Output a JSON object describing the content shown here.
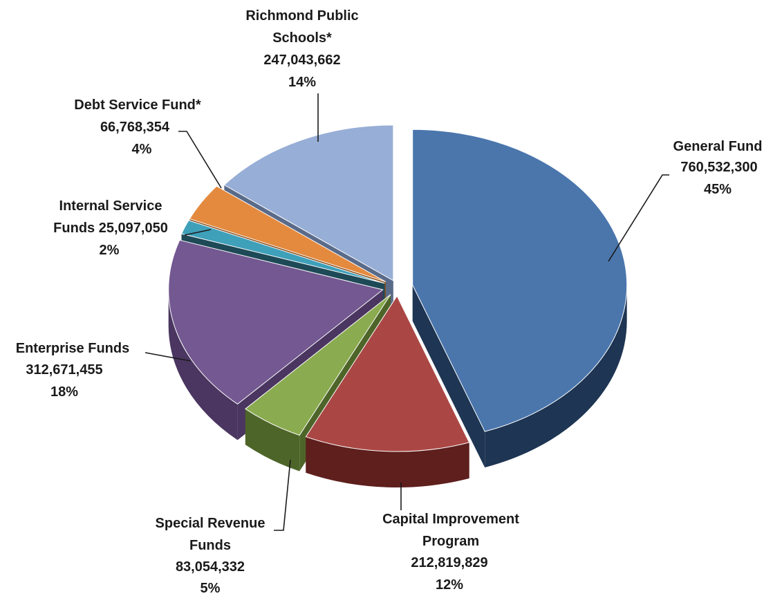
{
  "chart_data": {
    "type": "pie",
    "title": "",
    "three_d": true,
    "exploded": true,
    "slices": [
      {
        "name": "General Fund",
        "value": 760532300,
        "percent": "45%",
        "value_label": "760,532,300",
        "label_lines": [
          "General Fund"
        ],
        "color": "#4A76AC",
        "side_color": "#1E3553"
      },
      {
        "name": "Capital Improvement Program",
        "value": 212819829,
        "percent": "12%",
        "value_label": "212,819,829",
        "label_lines": [
          "Capital Improvement",
          "Program"
        ],
        "color": "#AA4744",
        "side_color": "#5E1F1D"
      },
      {
        "name": "Special Revenue Funds",
        "value": 83054332,
        "percent": "5%",
        "value_label": "83,054,332",
        "label_lines": [
          "Special Revenue",
          "Funds"
        ],
        "color": "#8AAB4F",
        "side_color": "#4E6529"
      },
      {
        "name": "Enterprise Funds",
        "value": 312671455,
        "percent": "18%",
        "value_label": "312,671,455",
        "label_lines": [
          "Enterprise Funds"
        ],
        "color": "#735891",
        "side_color": "#4A3660"
      },
      {
        "name": "Internal Service Funds",
        "value": 25097050,
        "percent": "2%",
        "value_label": "25,097,050",
        "label_lines": [
          "Internal Service",
          "Funds 25,097,050"
        ],
        "color": "#3FA0BA",
        "side_color": "#1E4A57"
      },
      {
        "name": "Debt Service Fund*",
        "value": 66768354,
        "percent": "4%",
        "value_label": "66,768,354",
        "label_lines": [
          "Debt Service Fund*",
          "66,768,354"
        ],
        "color": "#E48A3E",
        "side_color": "#8A4E1C"
      },
      {
        "name": "Richmond Public Schools*",
        "value": 247043662,
        "percent": "14%",
        "value_label": "247,043,662",
        "label_lines": [
          "Richmond Public",
          "Schools*",
          "247,043,662"
        ],
        "color": "#97AED6",
        "side_color": "#5A6B8A"
      }
    ]
  }
}
